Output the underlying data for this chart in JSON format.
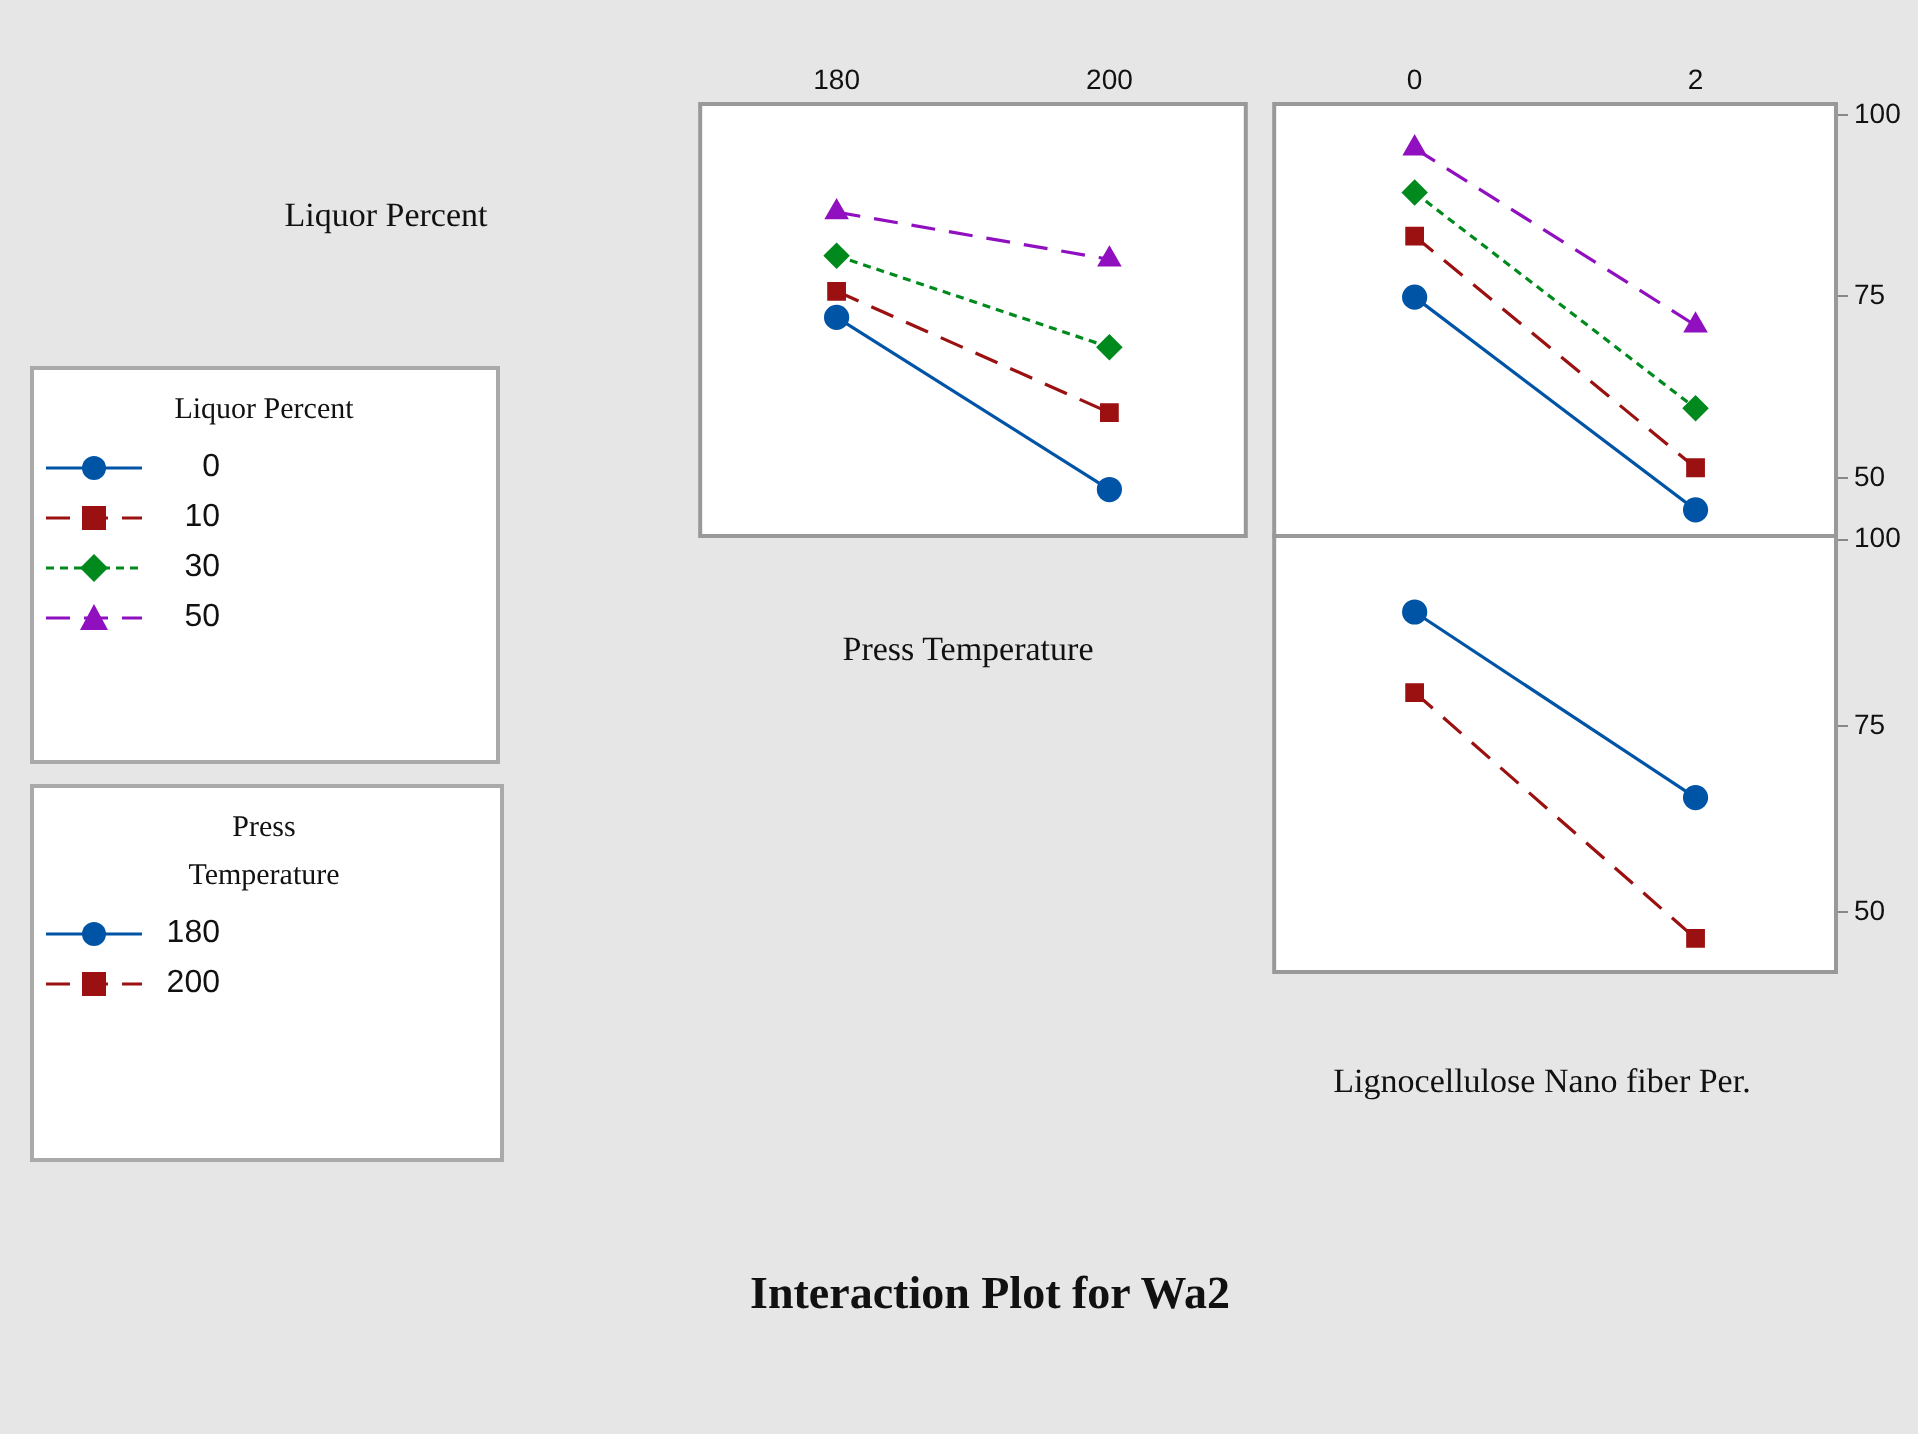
{
  "chart_data": [
    {
      "type": "line",
      "title": "Interaction Plot for Wa2",
      "ylabel": "Liquor Percent",
      "xlabel": "Press Temperature",
      "legend_title": "Liquor Percent",
      "legend": "left",
      "x": [
        180,
        200
      ],
      "xlim": [
        170,
        210
      ],
      "xticks": [
        180,
        200
      ],
      "ylim": [
        42,
        101.5
      ],
      "yticks": [
        50,
        75,
        100
      ],
      "tick_labels": "x",
      "series": [
        {
          "name": "0",
          "color": "#0054a6",
          "marker": "circle",
          "line_style": "solid",
          "values": [
            72.1,
            48.4
          ]
        },
        {
          "name": "10",
          "color": "#9b1010",
          "marker": "square",
          "line_style": "dashed",
          "values": [
            75.7,
            59.0
          ]
        },
        {
          "name": "30",
          "color": "#008a1e",
          "marker": "diamond",
          "line_style": "dotted",
          "values": [
            80.6,
            68.0
          ]
        },
        {
          "name": "50",
          "color": "#9010c0",
          "marker": "triangle",
          "line_style": "dashed",
          "values": [
            86.6,
            80.1
          ]
        }
      ]
    },
    {
      "type": "line",
      "x": [
        0,
        2
      ],
      "xlim": [
        -1,
        3
      ],
      "xticks": [
        0,
        2
      ],
      "ylim": [
        42,
        101.5
      ],
      "yticks": [
        50,
        75,
        100
      ],
      "series": [
        {
          "color": "#0054a6",
          "marker": "circle",
          "line_style": "solid",
          "values": [
            74.9,
            45.6
          ]
        },
        {
          "color": "#9b1010",
          "marker": "square",
          "line_style": "dashed",
          "values": [
            83.3,
            51.4
          ]
        },
        {
          "color": "#008a1e",
          "marker": "diamond",
          "line_style": "dotted",
          "values": [
            89.3,
            59.6
          ]
        },
        {
          "color": "#9010c0",
          "marker": "triangle",
          "line_style": "dashed",
          "values": [
            95.4,
            71.0
          ]
        }
      ]
    },
    {
      "type": "line",
      "xlabel": "Lignocellulose Nano fiber Per.",
      "legend_title": "Press Temperature",
      "legend": "left",
      "x": [
        0,
        2
      ],
      "xlim": [
        -1,
        3
      ],
      "xticks": [
        0,
        2
      ],
      "ylim": [
        42,
        100.5
      ],
      "yticks": [
        50,
        75,
        100
      ],
      "tick_labels": "y",
      "series": [
        {
          "name": "180",
          "color": "#0054a6",
          "marker": "circle",
          "line_style": "solid",
          "values": [
            90.3,
            65.4
          ]
        },
        {
          "name": "200",
          "color": "#9b1010",
          "marker": "square",
          "line_style": "dashed",
          "values": [
            79.5,
            46.5
          ]
        }
      ]
    }
  ]
}
